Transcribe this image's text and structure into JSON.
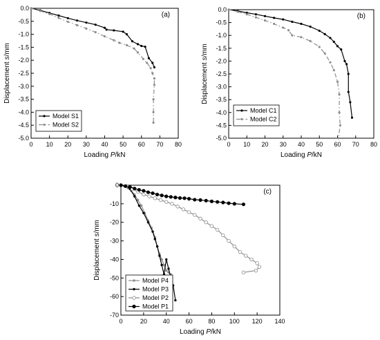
{
  "colors": {
    "axis": "#000000",
    "black_series": "#000000",
    "gray_series": "#8c8c8c"
  },
  "chart_data": [
    {
      "type": "line",
      "panel_label": "(a)",
      "xlabel_prefix": "Loading ",
      "xlabel_var": "P",
      "xlabel_unit": "/kN",
      "ylabel_prefix": "Displacement ",
      "ylabel_var": "s",
      "ylabel_unit": "/mm",
      "xlim": [
        0,
        80
      ],
      "ylim": [
        -5.0,
        0.0
      ],
      "xticks": [
        0,
        10,
        20,
        30,
        40,
        50,
        60,
        70,
        80
      ],
      "yticks": [
        0.0,
        -0.5,
        -1.0,
        -1.5,
        -2.0,
        -2.5,
        -3.0,
        -3.5,
        -4.0,
        -4.5,
        -5.0
      ],
      "grid": false,
      "legend_position": "bottom-left",
      "series": [
        {
          "name": "Model S1",
          "color": "#000000",
          "marker": "dot",
          "dash": "",
          "points": [
            [
              0,
              0
            ],
            [
              5,
              -0.08
            ],
            [
              10,
              -0.18
            ],
            [
              15,
              -0.28
            ],
            [
              20,
              -0.38
            ],
            [
              25,
              -0.47
            ],
            [
              30,
              -0.55
            ],
            [
              35,
              -0.63
            ],
            [
              40,
              -0.75
            ],
            [
              41,
              -0.82
            ],
            [
              45,
              -0.85
            ],
            [
              50,
              -0.9
            ],
            [
              52,
              -1.0
            ],
            [
              55,
              -1.27
            ],
            [
              58,
              -1.38
            ],
            [
              60,
              -1.45
            ],
            [
              62,
              -1.48
            ],
            [
              64,
              -1.92
            ],
            [
              66,
              -2.1
            ],
            [
              67,
              -2.27
            ]
          ]
        },
        {
          "name": "Model S2",
          "color": "#8c8c8c",
          "marker": "dot",
          "dash": "6,3,1.5,3",
          "points": [
            [
              0,
              0
            ],
            [
              5,
              -0.1
            ],
            [
              10,
              -0.22
            ],
            [
              15,
              -0.37
            ],
            [
              20,
              -0.52
            ],
            [
              25,
              -0.65
            ],
            [
              30,
              -0.78
            ],
            [
              35,
              -0.92
            ],
            [
              40,
              -1.08
            ],
            [
              45,
              -1.23
            ],
            [
              48,
              -1.33
            ],
            [
              52,
              -1.42
            ],
            [
              56,
              -1.55
            ],
            [
              58,
              -1.7
            ],
            [
              61,
              -1.95
            ],
            [
              63,
              -2.1
            ],
            [
              65,
              -2.3
            ],
            [
              66,
              -2.5
            ],
            [
              67,
              -2.7
            ],
            [
              67,
              -2.95
            ],
            [
              66.5,
              -3.5
            ],
            [
              66.5,
              -4.0
            ],
            [
              66.5,
              -4.4
            ]
          ]
        }
      ]
    },
    {
      "type": "line",
      "panel_label": "(b)",
      "xlabel_prefix": "Loading ",
      "xlabel_var": "P",
      "xlabel_unit": "/kN",
      "ylabel_prefix": "Displacement ",
      "ylabel_var": "s",
      "ylabel_unit": "/mm",
      "xlim": [
        0,
        80
      ],
      "ylim": [
        -5.0,
        0.0
      ],
      "xticks": [
        0,
        10,
        20,
        30,
        40,
        50,
        60,
        70,
        80
      ],
      "yticks": [
        0.0,
        -0.5,
        -1.0,
        -1.5,
        -2.0,
        -2.5,
        -3.0,
        -3.5,
        -4.0,
        -4.5,
        -5.0
      ],
      "grid": false,
      "legend_position": "bottom-left",
      "series": [
        {
          "name": "Model C1",
          "color": "#000000",
          "marker": "dot",
          "dash": "",
          "points": [
            [
              0,
              0
            ],
            [
              5,
              -0.05
            ],
            [
              10,
              -0.12
            ],
            [
              15,
              -0.18
            ],
            [
              20,
              -0.25
            ],
            [
              25,
              -0.32
            ],
            [
              30,
              -0.38
            ],
            [
              35,
              -0.47
            ],
            [
              40,
              -0.55
            ],
            [
              45,
              -0.66
            ],
            [
              50,
              -0.82
            ],
            [
              53,
              -0.95
            ],
            [
              56,
              -1.1
            ],
            [
              58,
              -1.25
            ],
            [
              60,
              -1.42
            ],
            [
              62,
              -1.55
            ],
            [
              64,
              -2.0
            ],
            [
              65,
              -2.12
            ],
            [
              66,
              -2.5
            ],
            [
              66,
              -3.2
            ],
            [
              67,
              -3.6
            ],
            [
              68,
              -4.2
            ]
          ]
        },
        {
          "name": "Model C2",
          "color": "#8c8c8c",
          "marker": "dot",
          "dash": "6,3,1.5,3",
          "points": [
            [
              0,
              0
            ],
            [
              5,
              -0.08
            ],
            [
              10,
              -0.18
            ],
            [
              15,
              -0.3
            ],
            [
              20,
              -0.42
            ],
            [
              25,
              -0.55
            ],
            [
              30,
              -0.7
            ],
            [
              33,
              -0.8
            ],
            [
              35,
              -1.0
            ],
            [
              40,
              -1.07
            ],
            [
              45,
              -1.22
            ],
            [
              50,
              -1.45
            ],
            [
              53,
              -1.7
            ],
            [
              56,
              -2.05
            ],
            [
              58,
              -2.35
            ],
            [
              60,
              -2.8
            ],
            [
              61,
              -3.3
            ],
            [
              61,
              -4.0
            ],
            [
              61.5,
              -4.5
            ],
            [
              60.5,
              -5.0
            ]
          ]
        }
      ]
    },
    {
      "type": "line",
      "panel_label": "(c)",
      "xlabel_prefix": "Loading ",
      "xlabel_var": "P",
      "xlabel_unit": "/kN",
      "ylabel_prefix": "Displacement ",
      "ylabel_var": "s",
      "ylabel_unit": "/mm",
      "xlim": [
        0,
        140
      ],
      "ylim": [
        -70,
        0
      ],
      "xticks": [
        0,
        20,
        40,
        60,
        80,
        100,
        120,
        140
      ],
      "yticks": [
        0,
        -10,
        -20,
        -30,
        -40,
        -50,
        -60,
        -70
      ],
      "grid": false,
      "legend_position": "bottom-left",
      "series": [
        {
          "name": "Model P4",
          "color": "#8c8c8c",
          "marker": "filled-small",
          "dash": "",
          "points": [
            [
              0,
              0
            ],
            [
              3,
              -0.5
            ],
            [
              6,
              -1.5
            ],
            [
              9,
              -3
            ],
            [
              12,
              -5
            ],
            [
              15,
              -8
            ],
            [
              18,
              -11
            ],
            [
              21,
              -15
            ],
            [
              24,
              -19
            ],
            [
              27,
              -23
            ],
            [
              30,
              -28
            ],
            [
              32,
              -33
            ],
            [
              34,
              -37
            ],
            [
              36,
              -40
            ],
            [
              38,
              -43
            ],
            [
              40,
              -46
            ],
            [
              42,
              -47
            ],
            [
              44,
              -48
            ]
          ]
        },
        {
          "name": "Model P3",
          "color": "#000000",
          "marker": "filled-small",
          "dash": "",
          "points": [
            [
              0,
              0
            ],
            [
              4,
              -0.5
            ],
            [
              8,
              -2
            ],
            [
              12,
              -6
            ],
            [
              16,
              -11
            ],
            [
              20,
              -15
            ],
            [
              24,
              -20
            ],
            [
              28,
              -25
            ],
            [
              30,
              -29
            ],
            [
              32,
              -33
            ],
            [
              34,
              -38
            ],
            [
              36,
              -43
            ],
            [
              38,
              -48
            ],
            [
              40,
              -40
            ],
            [
              42,
              -45
            ],
            [
              44,
              -50
            ],
            [
              46,
              -54
            ],
            [
              48,
              -62
            ]
          ]
        },
        {
          "name": "Model P2",
          "color": "#8c8c8c",
          "marker": "open",
          "dash": "",
          "points": [
            [
              0,
              0
            ],
            [
              5,
              -0.5
            ],
            [
              10,
              -2
            ],
            [
              15,
              -3.5
            ],
            [
              20,
              -5
            ],
            [
              25,
              -6
            ],
            [
              30,
              -7
            ],
            [
              35,
              -8
            ],
            [
              40,
              -9
            ],
            [
              45,
              -10
            ],
            [
              50,
              -11.5
            ],
            [
              55,
              -13
            ],
            [
              60,
              -14.5
            ],
            [
              65,
              -16
            ],
            [
              70,
              -18
            ],
            [
              75,
              -20
            ],
            [
              80,
              -22
            ],
            [
              85,
              -24
            ],
            [
              90,
              -27
            ],
            [
              95,
              -30
            ],
            [
              100,
              -33
            ],
            [
              105,
              -36
            ],
            [
              110,
              -38
            ],
            [
              115,
              -40
            ],
            [
              120,
              -42
            ],
            [
              122,
              -44
            ],
            [
              119,
              -46
            ],
            [
              108,
              -47
            ]
          ]
        },
        {
          "name": "Model P1",
          "color": "#000000",
          "marker": "filled-big",
          "dash": "",
          "points": [
            [
              0,
              0
            ],
            [
              4,
              -0.5
            ],
            [
              8,
              -1
            ],
            [
              12,
              -1.8
            ],
            [
              16,
              -2.5
            ],
            [
              20,
              -3
            ],
            [
              24,
              -3.8
            ],
            [
              28,
              -4.3
            ],
            [
              32,
              -5
            ],
            [
              36,
              -5.5
            ],
            [
              40,
              -6
            ],
            [
              44,
              -6.3
            ],
            [
              48,
              -6.6
            ],
            [
              52,
              -6.9
            ],
            [
              56,
              -7
            ],
            [
              60,
              -7.3
            ],
            [
              65,
              -7.8
            ],
            [
              70,
              -8
            ],
            [
              75,
              -8.3
            ],
            [
              80,
              -8.7
            ],
            [
              85,
              -9
            ],
            [
              90,
              -9.3
            ],
            [
              95,
              -9.7
            ],
            [
              100,
              -10
            ],
            [
              108,
              -10.3
            ]
          ]
        }
      ]
    }
  ]
}
